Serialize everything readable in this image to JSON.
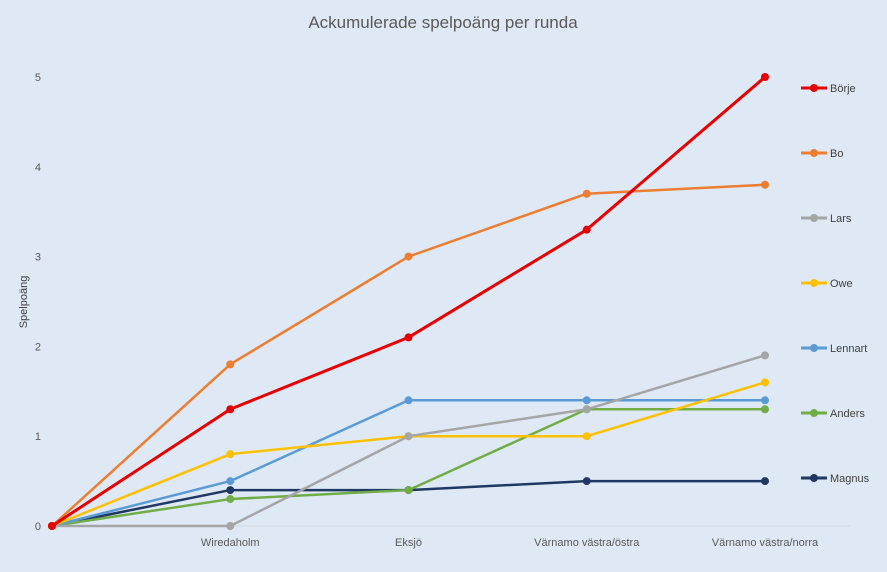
{
  "chart_data": {
    "type": "line",
    "title": "Ackumulerade spelpoäng per runda",
    "xlabel": "",
    "ylabel": "Spelpoäng",
    "categories": [
      "",
      "Wiredaholm",
      "Eksjö",
      "Värnamo västra/östra",
      "Värnamo västra/norra"
    ],
    "ylim": [
      0,
      5
    ],
    "yticks": [
      0,
      1,
      2,
      3,
      4,
      5
    ],
    "grid": false,
    "legend": "right",
    "series": [
      {
        "name": "Börje",
        "color": "#e60000",
        "values": [
          0,
          1.3,
          2.1,
          3.3,
          5.0
        ]
      },
      {
        "name": "Bo",
        "color": "#ed7d31",
        "values": [
          0,
          1.8,
          3.0,
          3.7,
          3.8
        ]
      },
      {
        "name": "Lars",
        "color": "#a5a5a5",
        "values": [
          0,
          0.0,
          1.0,
          1.3,
          1.9
        ]
      },
      {
        "name": "Owe",
        "color": "#ffc000",
        "values": [
          0,
          0.8,
          1.0,
          1.0,
          1.6
        ]
      },
      {
        "name": "Lennart",
        "color": "#5b9bd5",
        "values": [
          0,
          0.5,
          1.4,
          1.4,
          1.4
        ]
      },
      {
        "name": "Anders",
        "color": "#70ad47",
        "values": [
          0,
          0.3,
          0.4,
          1.3,
          1.3
        ]
      },
      {
        "name": "Magnus",
        "color": "#203864",
        "values": [
          0,
          0.4,
          0.4,
          0.5,
          0.5
        ]
      }
    ]
  }
}
